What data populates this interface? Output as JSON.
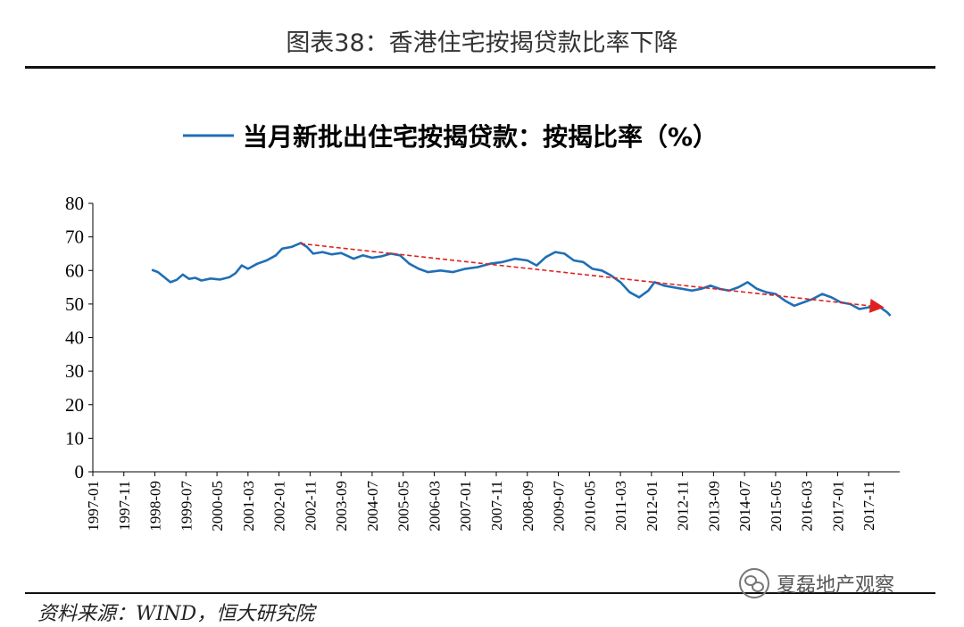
{
  "header": {
    "figure_title": "图表38：香港住宅按揭贷款比率下降"
  },
  "footer": {
    "source": "资料来源：WIND，恒大研究院",
    "watermark_text": "夏磊地产观察",
    "watermark_icon": "wechat-icon"
  },
  "chart_data": {
    "type": "line",
    "title": "",
    "xlabel": "",
    "ylabel": "",
    "ylim": [
      0,
      80
    ],
    "yticks": [
      0,
      10,
      20,
      30,
      40,
      50,
      60,
      70,
      80
    ],
    "xtick_labels": [
      "1997-01",
      "1997-11",
      "1998-09",
      "1999-07",
      "2000-05",
      "2001-03",
      "2002-01",
      "2002-11",
      "2003-09",
      "2004-07",
      "2005-05",
      "2006-03",
      "2007-01",
      "2007-11",
      "2008-09",
      "2009-07",
      "2010-05",
      "2011-03",
      "2012-01",
      "2012-11",
      "2013-09",
      "2014-07",
      "2015-05",
      "2016-03",
      "2017-01",
      "2017-11"
    ],
    "grid": false,
    "legend": {
      "position": "top-center"
    },
    "series": [
      {
        "name": "当月新批出住宅按揭贷款：按揭比率（%）",
        "color": "#1f6fb5",
        "points": [
          [
            "1998-08",
            60.2
          ],
          [
            "1998-10",
            59.5
          ],
          [
            "1998-12",
            58.0
          ],
          [
            "1999-02",
            56.5
          ],
          [
            "1999-04",
            57.2
          ],
          [
            "1999-06",
            58.8
          ],
          [
            "1999-08",
            57.5
          ],
          [
            "1999-10",
            57.8
          ],
          [
            "1999-12",
            57.0
          ],
          [
            "2000-03",
            57.6
          ],
          [
            "2000-06",
            57.3
          ],
          [
            "2000-09",
            58.0
          ],
          [
            "2000-11",
            59.2
          ],
          [
            "2001-01",
            61.5
          ],
          [
            "2001-03",
            60.5
          ],
          [
            "2001-06",
            62.0
          ],
          [
            "2001-09",
            63.0
          ],
          [
            "2001-12",
            64.5
          ],
          [
            "2002-02",
            66.5
          ],
          [
            "2002-05",
            67.0
          ],
          [
            "2002-08",
            68.2
          ],
          [
            "2002-10",
            67.0
          ],
          [
            "2002-12",
            65.0
          ],
          [
            "2003-03",
            65.5
          ],
          [
            "2003-06",
            64.8
          ],
          [
            "2003-09",
            65.2
          ],
          [
            "2004-01",
            63.5
          ],
          [
            "2004-04",
            64.5
          ],
          [
            "2004-07",
            63.8
          ],
          [
            "2004-10",
            64.2
          ],
          [
            "2005-01",
            65.0
          ],
          [
            "2005-04",
            64.5
          ],
          [
            "2005-07",
            62.0
          ],
          [
            "2005-10",
            60.5
          ],
          [
            "2006-01",
            59.5
          ],
          [
            "2006-05",
            60.0
          ],
          [
            "2006-09",
            59.5
          ],
          [
            "2007-01",
            60.5
          ],
          [
            "2007-05",
            61.0
          ],
          [
            "2007-09",
            62.0
          ],
          [
            "2008-01",
            62.5
          ],
          [
            "2008-05",
            63.5
          ],
          [
            "2008-09",
            63.0
          ],
          [
            "2008-12",
            61.5
          ],
          [
            "2009-03",
            64.0
          ],
          [
            "2009-06",
            65.5
          ],
          [
            "2009-09",
            65.0
          ],
          [
            "2009-12",
            63.0
          ],
          [
            "2010-03",
            62.5
          ],
          [
            "2010-06",
            60.5
          ],
          [
            "2010-09",
            60.0
          ],
          [
            "2010-12",
            58.5
          ],
          [
            "2011-03",
            56.5
          ],
          [
            "2011-06",
            53.5
          ],
          [
            "2011-09",
            52.0
          ],
          [
            "2011-12",
            54.0
          ],
          [
            "2012-02",
            56.5
          ],
          [
            "2012-05",
            55.5
          ],
          [
            "2012-08",
            55.0
          ],
          [
            "2012-11",
            54.5
          ],
          [
            "2013-02",
            54.0
          ],
          [
            "2013-05",
            54.5
          ],
          [
            "2013-08",
            55.5
          ],
          [
            "2013-11",
            54.5
          ],
          [
            "2014-02",
            54.0
          ],
          [
            "2014-05",
            55.0
          ],
          [
            "2014-08",
            56.5
          ],
          [
            "2014-11",
            54.5
          ],
          [
            "2015-02",
            53.5
          ],
          [
            "2015-05",
            53.0
          ],
          [
            "2015-08",
            51.0
          ],
          [
            "2015-11",
            49.5
          ],
          [
            "2016-02",
            50.5
          ],
          [
            "2016-05",
            51.5
          ],
          [
            "2016-08",
            53.0
          ],
          [
            "2016-11",
            52.0
          ],
          [
            "2017-02",
            50.5
          ],
          [
            "2017-05",
            50.0
          ],
          [
            "2017-08",
            48.5
          ],
          [
            "2017-11",
            49.0
          ],
          [
            "2018-02",
            49.5
          ],
          [
            "2018-05",
            47.5
          ],
          [
            "2018-06",
            46.5
          ]
        ]
      }
    ],
    "annotations": [
      {
        "type": "trend-arrow",
        "color": "#e02020",
        "from": [
          "2002-08",
          68.0
        ],
        "to": [
          "2018-04",
          49.0
        ]
      }
    ]
  }
}
